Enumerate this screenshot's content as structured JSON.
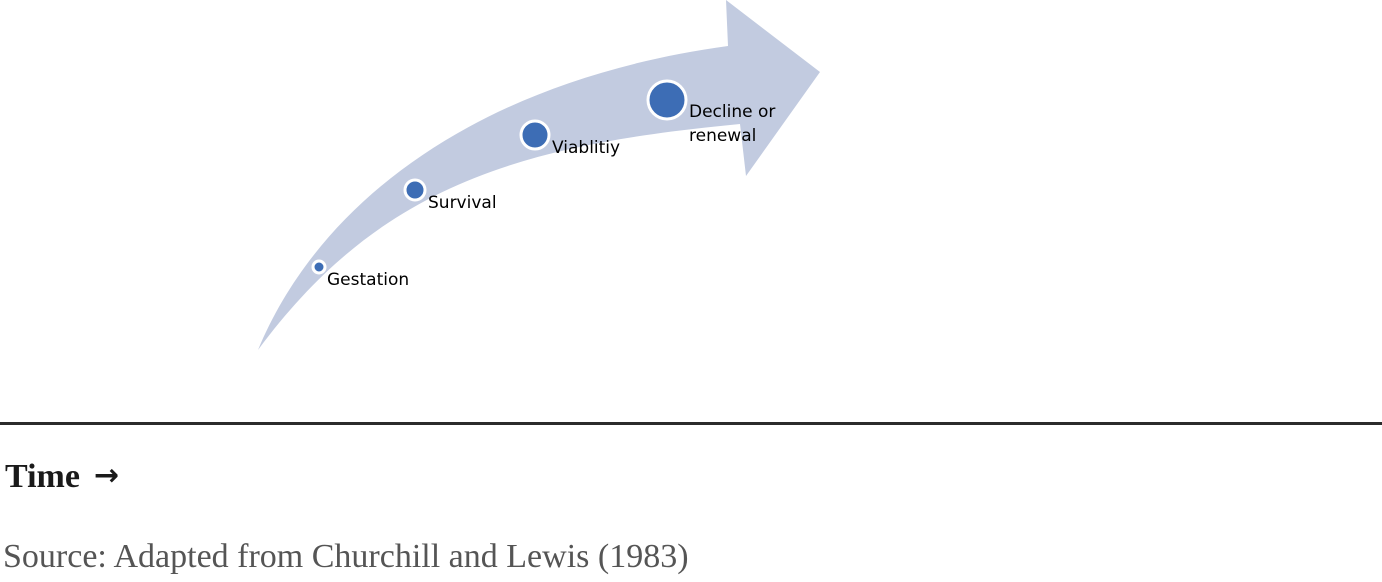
{
  "diagram": {
    "type": "growth-stages-arrow",
    "arrow_color": "#c2cbe0",
    "marker_color": "#3d6db5",
    "marker_outline": "#ffffff",
    "stages": [
      {
        "lines": [
          "Gestation"
        ]
      },
      {
        "lines": [
          "Survival"
        ]
      },
      {
        "lines": [
          "Viablitiy"
        ]
      },
      {
        "lines": [
          "Decline or",
          "renewal"
        ]
      }
    ]
  },
  "axis": {
    "label": "Time",
    "arrow_glyph": "→"
  },
  "source": "Source: Adapted from Churchill and Lewis (1983)"
}
